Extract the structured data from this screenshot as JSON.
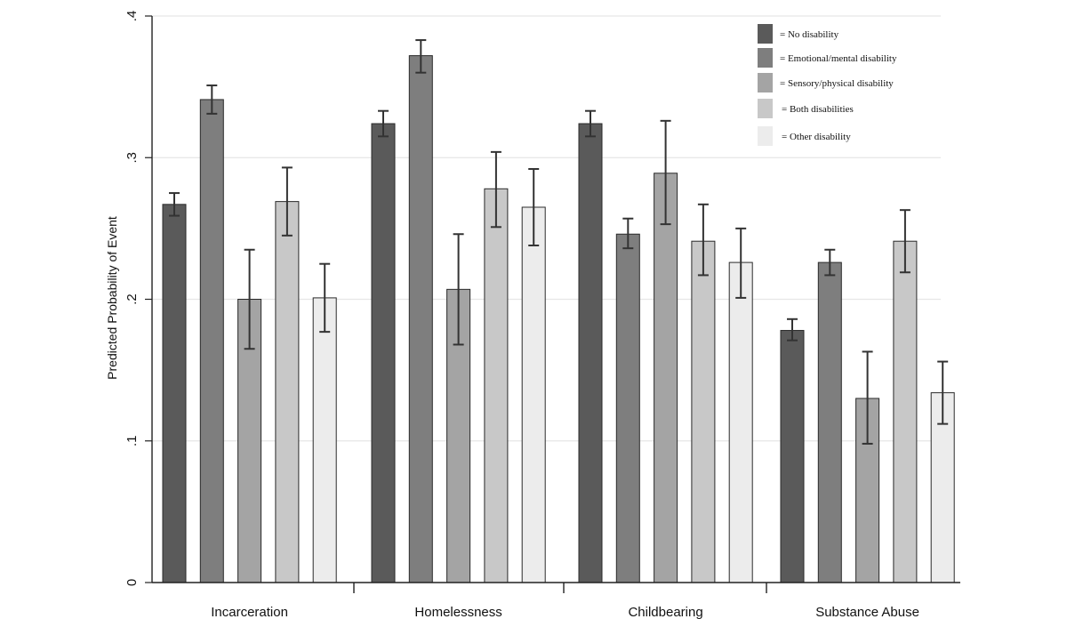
{
  "chart_data": {
    "type": "bar",
    "title": "",
    "xlabel": "",
    "ylabel": "Predicted Probability of Event",
    "ylim": [
      0,
      0.4
    ],
    "yticks": [
      {
        "value": 0,
        "label": "0"
      },
      {
        "value": 0.1,
        "label": ".1"
      },
      {
        "value": 0.2,
        "label": ".2"
      },
      {
        "value": 0.3,
        "label": ".3"
      },
      {
        "value": 0.4,
        "label": ".4"
      }
    ],
    "grid": true,
    "legend_position": "top-right",
    "categories": [
      "Incarceration",
      "Homelessness",
      "Childbearing",
      "Substance Abuse"
    ],
    "series": [
      {
        "name": "= No disability",
        "color": "#5a5a5a",
        "values": [
          0.267,
          0.324,
          0.324,
          0.178
        ],
        "ci_low": [
          0.259,
          0.315,
          0.315,
          0.171
        ],
        "ci_high": [
          0.275,
          0.333,
          0.333,
          0.186
        ]
      },
      {
        "name": "= Emotional/mental disability",
        "color": "#7e7e7e",
        "values": [
          0.341,
          0.372,
          0.246,
          0.226
        ],
        "ci_low": [
          0.331,
          0.36,
          0.236,
          0.217
        ],
        "ci_high": [
          0.351,
          0.383,
          0.257,
          0.235
        ]
      },
      {
        "name": "= Sensory/physical disability",
        "color": "#a4a4a4",
        "values": [
          0.2,
          0.207,
          0.289,
          0.13
        ],
        "ci_low": [
          0.165,
          0.168,
          0.253,
          0.098
        ],
        "ci_high": [
          0.235,
          0.246,
          0.326,
          0.163
        ]
      },
      {
        "name": "= Both disabilities",
        "color": "#c8c8c8",
        "values": [
          0.269,
          0.278,
          0.241,
          0.241
        ],
        "ci_low": [
          0.245,
          0.251,
          0.217,
          0.219
        ],
        "ci_high": [
          0.293,
          0.304,
          0.267,
          0.263
        ]
      },
      {
        "name": "= Other disability",
        "color": "#ececec",
        "values": [
          0.201,
          0.265,
          0.226,
          0.134
        ],
        "ci_low": [
          0.177,
          0.238,
          0.201,
          0.112
        ],
        "ci_high": [
          0.225,
          0.292,
          0.25,
          0.156
        ]
      }
    ]
  }
}
